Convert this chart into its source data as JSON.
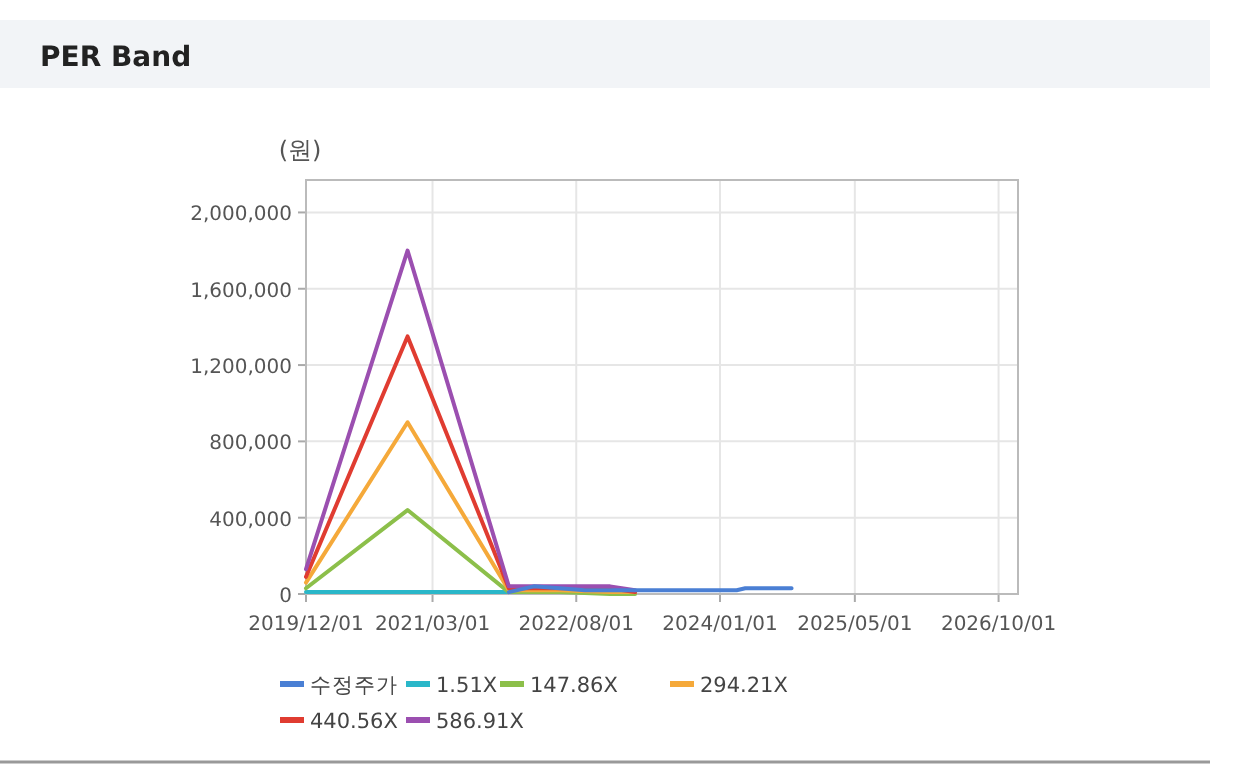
{
  "chart_data": {
    "type": "line",
    "title": "PER Band",
    "ylabel": "(원)",
    "xlim": [
      "2019-12-01",
      "2026-12-10"
    ],
    "ylim": [
      0,
      2170000
    ],
    "xticks": [
      {
        "value": "2019-12-01",
        "label": "2019/12/01"
      },
      {
        "value": "2021-03-01",
        "label": "2021/03/01"
      },
      {
        "value": "2022-08-01",
        "label": "2022/08/01"
      },
      {
        "value": "2024-01-01",
        "label": "2024/01/01"
      },
      {
        "value": "2025-05-01",
        "label": "2025/05/01"
      },
      {
        "value": "2026-10-01",
        "label": "2026/10/01"
      }
    ],
    "yticks": [
      0,
      {
        "value": 400000,
        "label": "400,000"
      },
      {
        "value": 800000,
        "label": "800,000"
      },
      {
        "value": 1200000,
        "label": "1,200,000"
      },
      {
        "value": 1600000,
        "label": "1,600,000"
      },
      {
        "value": 2000000,
        "label": "2,000,000"
      }
    ],
    "grid": true,
    "legend": "bottom",
    "marker": "none",
    "line_style": "solid",
    "series": [
      {
        "name": "수정주가",
        "color": "#4a7fd4",
        "x": [
          "2021-12-01",
          "2022-03-01",
          "2022-09-01",
          "2023-09-01",
          "2024-03-01",
          "2024-04-01",
          "2024-09-15"
        ],
        "values": [
          10000,
          40000,
          20000,
          20000,
          20000,
          30000,
          30000
        ]
      },
      {
        "name": "1.51X",
        "color": "#2ab7c9",
        "x": [
          "2019-12-01",
          "2020-12-01",
          "2021-12-01"
        ],
        "values": [
          10000,
          10000,
          10000
        ]
      },
      {
        "name": "147.86X",
        "color": "#8cbf4a",
        "x": [
          "2019-12-01",
          "2020-12-01",
          "2021-12-01",
          "2022-06-01",
          "2022-12-01",
          "2023-03-01"
        ],
        "values": [
          30000,
          440000,
          10000,
          10000,
          0,
          0
        ]
      },
      {
        "name": "294.21X",
        "color": "#f5a93a",
        "x": [
          "2019-12-01",
          "2020-12-01",
          "2021-12-01",
          "2022-06-01",
          "2022-12-01",
          "2023-03-01"
        ],
        "values": [
          60000,
          900000,
          20000,
          20000,
          10000,
          10000
        ]
      },
      {
        "name": "440.56X",
        "color": "#e03c31",
        "x": [
          "2019-12-01",
          "2020-12-01",
          "2021-12-01",
          "2022-06-01",
          "2022-12-01",
          "2023-03-01"
        ],
        "values": [
          90000,
          1350000,
          30000,
          30000,
          30000,
          10000
        ]
      },
      {
        "name": "586.91X",
        "color": "#9b4fb0",
        "x": [
          "2019-12-01",
          "2020-12-01",
          "2021-12-01",
          "2022-06-01",
          "2022-12-01",
          "2023-03-01"
        ],
        "values": [
          130000,
          1800000,
          40000,
          40000,
          40000,
          20000
        ]
      }
    ]
  }
}
